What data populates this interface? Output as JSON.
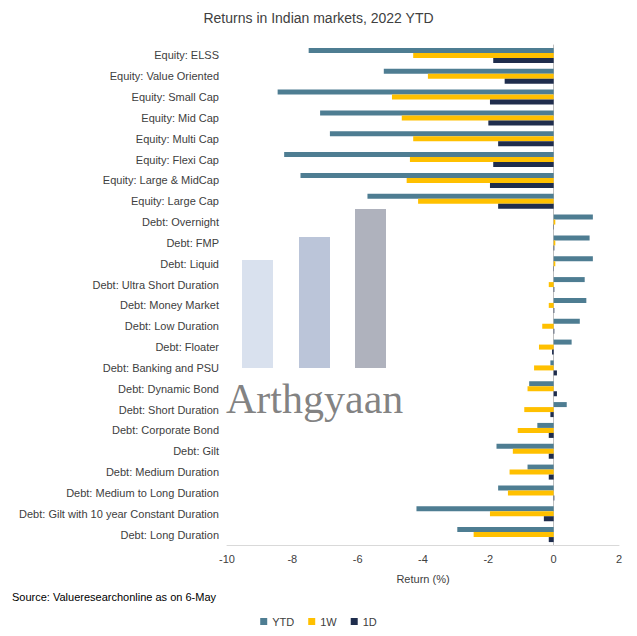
{
  "chart_data": {
    "type": "bar",
    "orientation": "horizontal",
    "title": "Returns in Indian markets, 2022 YTD",
    "xlabel": "Return (%)",
    "source": "Source: Valueresearchonline as on 6-May",
    "watermark": "Arthgyaan",
    "categories": [
      "Equity: ELSS",
      "Equity: Value Oriented",
      "Equity: Small Cap",
      "Equity: Mid Cap",
      "Equity: Multi Cap",
      "Equity: Flexi Cap",
      "Equity: Large & MidCap",
      "Equity: Large Cap",
      "Debt: Overnight",
      "Debt: FMP",
      "Debt: Liquid",
      "Debt: Ultra Short Duration",
      "Debt: Money Market",
      "Debt: Low Duration",
      "Debt: Floater",
      "Debt: Banking and PSU",
      "Debt: Dynamic Bond",
      "Debt: Short Duration",
      "Debt: Corporate Bond",
      "Debt: Gilt",
      "Debt: Medium Duration",
      "Debt: Medium to Long Duration",
      "Debt: Gilt with 10 year Constant Duration",
      "Debt: Long Duration"
    ],
    "series": [
      {
        "name": "YTD",
        "color": "#4e7d92",
        "values": [
          -7.5,
          -5.2,
          -8.45,
          -7.15,
          -6.85,
          -8.25,
          -7.75,
          -5.7,
          1.2,
          1.1,
          1.2,
          0.95,
          1.0,
          0.8,
          0.55,
          -0.1,
          -0.75,
          0.4,
          -0.5,
          -1.75,
          -0.8,
          -1.7,
          -4.2,
          -2.95
        ]
      },
      {
        "name": "1W",
        "color": "#ffc000",
        "values": [
          -4.3,
          -3.85,
          -4.95,
          -4.65,
          -4.3,
          -4.4,
          -4.5,
          -4.15,
          0.05,
          0.05,
          0.05,
          -0.15,
          -0.15,
          -0.35,
          -0.45,
          -0.6,
          -0.8,
          -0.9,
          -1.1,
          -1.25,
          -1.35,
          -1.4,
          -1.95,
          -2.45
        ]
      },
      {
        "name": "1D",
        "color": "#1f2d4d",
        "values": [
          -1.85,
          -1.5,
          -1.95,
          -2.0,
          -1.7,
          -1.85,
          -1.95,
          -1.7,
          0.01,
          0.02,
          0.01,
          0.02,
          0.02,
          0.02,
          -0.05,
          0.1,
          0.1,
          -0.1,
          -0.15,
          -0.15,
          -0.15,
          0.02,
          -0.3,
          -0.15
        ]
      }
    ],
    "xlim": [
      -10,
      2
    ],
    "xticks": [
      -10,
      -8,
      -6,
      -4,
      -2,
      0,
      2
    ],
    "grid": false,
    "legend": "bottom"
  }
}
